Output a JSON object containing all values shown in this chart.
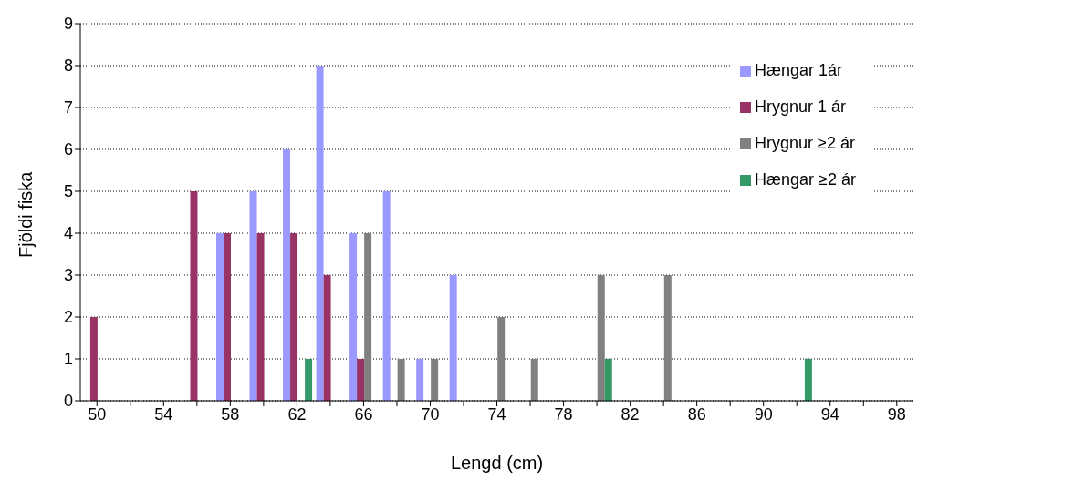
{
  "chart_data": {
    "type": "bar",
    "xlabel": "Lengd (cm)",
    "ylabel": "Fjöldi fiska",
    "categories": [
      "50",
      null,
      "54",
      null,
      "58",
      null,
      "62",
      null,
      "66",
      null,
      "70",
      null,
      "74",
      null,
      "78",
      null,
      "82",
      null,
      "86",
      null,
      "90",
      null,
      "94",
      null,
      "98"
    ],
    "series": [
      {
        "name": "Hængar 1ár",
        "color": "#9999ff",
        "values": [
          0,
          0,
          0,
          0,
          4,
          5,
          6,
          8,
          4,
          5,
          1,
          3,
          0,
          0,
          0,
          0,
          0,
          0,
          0,
          0,
          0,
          0,
          0,
          0,
          0
        ]
      },
      {
        "name": "Hrygnur 1 ár",
        "color": "#993366",
        "values": [
          2,
          0,
          0,
          5,
          4,
          4,
          4,
          3,
          1,
          0,
          0,
          0,
          0,
          0,
          0,
          0,
          0,
          0,
          0,
          0,
          0,
          0,
          0,
          0,
          0
        ]
      },
      {
        "name": "Hrygnur ≥2 ár",
        "color": "#808080",
        "values": [
          0,
          0,
          0,
          0,
          0,
          0,
          0,
          0,
          4,
          1,
          1,
          0,
          2,
          1,
          0,
          3,
          0,
          3,
          0,
          0,
          0,
          0,
          0,
          0,
          0
        ]
      },
      {
        "name": "Hængar ≥2 ár",
        "color": "#339966",
        "values": [
          0,
          0,
          0,
          0,
          0,
          0,
          1,
          0,
          0,
          0,
          0,
          0,
          0,
          0,
          0,
          1,
          0,
          0,
          0,
          0,
          0,
          1,
          0,
          0,
          0
        ]
      }
    ],
    "ylim": [
      0,
      9
    ],
    "yticks": [
      0,
      1,
      2,
      3,
      4,
      5,
      6,
      7,
      8,
      9
    ],
    "grid": "y",
    "legend": "top right"
  }
}
